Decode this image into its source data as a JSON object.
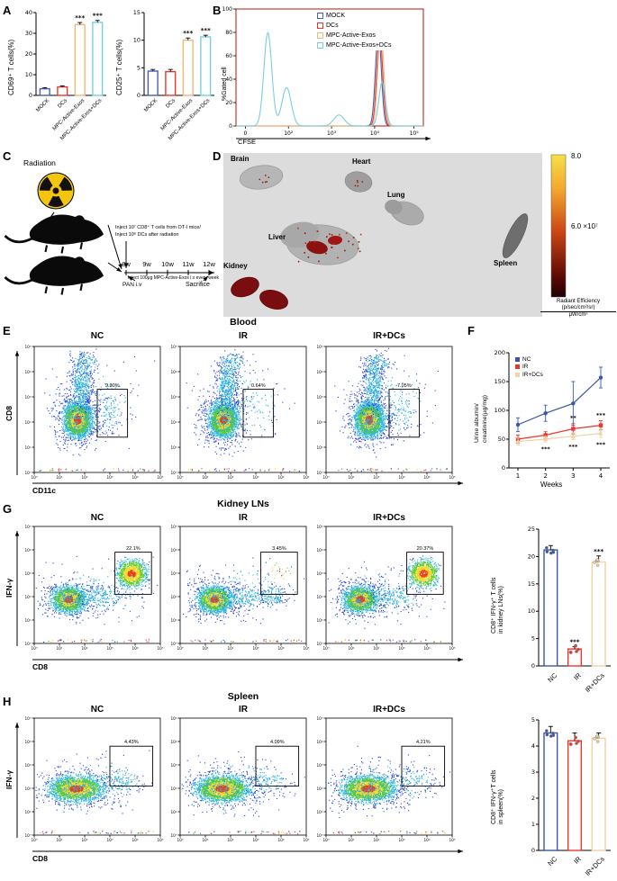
{
  "panels": {
    "a": {
      "label": "A"
    },
    "b": {
      "label": "B",
      "legend": [
        {
          "label": "MOCK",
          "color": "#4a5fb0"
        },
        {
          "label": "DCs",
          "color": "#e8382e"
        },
        {
          "label": "MPC-Active-Exos",
          "color": "#edb87c"
        },
        {
          "label": "MPC-Active-Exos+DCs",
          "color": "#79cfdc"
        }
      ]
    },
    "c": {
      "label": "C",
      "radiation": "Radiation",
      "timeline": [
        "8w",
        "9w",
        "10w",
        "11w",
        "12w"
      ],
      "line1": "Inject 10⁷ CD8⁺ T cells from OT-I mice/",
      "line2": "Inject 10⁶ DCs after radiation",
      "pan": "PAN i.v",
      "exos": "Inject 100μg MPC-Active-Exos i.v every week",
      "sacrifice": "Sacrifice"
    },
    "d": {
      "label": "D",
      "organs": [
        "Brain",
        "Heart",
        "Lung",
        "Liver",
        "Kidney",
        "Spleen"
      ],
      "scale": {
        "top": "8.0",
        "mid": "6.0 ×10⁷",
        "unit1": "Radiant Efficiency",
        "unit2": "(p/sec/cm²/sr)",
        "unit3": "μW/cm²"
      }
    },
    "e": {
      "label": "E",
      "title": "Blood",
      "groups": [
        "NC",
        "IR",
        "IR+DCs"
      ],
      "xlabel": "CD11c",
      "ylabel": "CD8",
      "gates": [
        "9.30%",
        "0.64%",
        "7.05%"
      ]
    },
    "f": {
      "label": "F"
    },
    "g": {
      "label": "G",
      "title": "Kidney LNs",
      "groups": [
        "NC",
        "IR",
        "IR+DCs"
      ],
      "xlabel": "CD8",
      "ylabel": "IFN-γ",
      "gates": [
        "22.1%",
        "3.45%",
        "20.37%"
      ]
    },
    "h": {
      "label": "H",
      "title": "Spleen",
      "groups": [
        "NC",
        "IR",
        "IR+DCs"
      ],
      "xlabel": "CD8",
      "ylabel": "IFN-γ",
      "gates": [
        "4.43%",
        "4.09%",
        "4.21%"
      ]
    }
  },
  "log_ticks": [
    "10⁰",
    "10¹",
    "10²",
    "10³",
    "10⁴",
    "10⁵"
  ],
  "chart_data": [
    {
      "id": "cd69",
      "type": "bar",
      "ylabel": "CD69⁺ T cells(%)",
      "ylim": [
        0,
        40
      ],
      "yticks": [
        0,
        10,
        20,
        30,
        40
      ],
      "categories": [
        "MOCK",
        "DCs",
        "MPC-Active-Exos",
        "MPC-Active-Exos+DCs"
      ],
      "values": [
        3.2,
        4.1,
        34.2,
        35.3
      ],
      "errors": [
        0.5,
        0.5,
        1.0,
        0.9
      ],
      "sig": [
        "",
        "",
        "***",
        "***"
      ],
      "colors": [
        "#4a5fb0",
        "#e8382e",
        "#edb87c",
        "#79cfdc"
      ]
    },
    {
      "id": "cd25",
      "type": "bar",
      "ylabel": "CD25⁺ T cells(%)",
      "ylim": [
        0,
        15
      ],
      "yticks": [
        0,
        5,
        10,
        15
      ],
      "categories": [
        "MOCK",
        "DCs",
        "MPC-Active-Exos",
        "MPC-Active-Exos+DCs"
      ],
      "values": [
        4.4,
        4.3,
        10.0,
        10.6
      ],
      "errors": [
        0.3,
        0.4,
        0.4,
        0.3
      ],
      "sig": [
        "",
        "",
        "***",
        "***"
      ],
      "colors": [
        "#4a5fb0",
        "#e8382e",
        "#edb87c",
        "#79cfdc"
      ]
    },
    {
      "id": "cfse",
      "type": "histogram",
      "xlabel": "CFSE",
      "ylabel": "%Gated cell",
      "ylim": [
        0,
        100
      ],
      "yticks": [
        0,
        20,
        40,
        60,
        80,
        100
      ],
      "xticks": [
        "0",
        "10²",
        "10³",
        "10⁴",
        "10⁵"
      ],
      "series": [
        {
          "name": "MOCK",
          "color": "#4a5fb0",
          "peaks": [
            [
              0.76,
              86,
              0.022
            ]
          ]
        },
        {
          "name": "DCs",
          "color": "#e8382e",
          "peaks": [
            [
              0.767,
              84,
              0.022
            ]
          ]
        },
        {
          "name": "MPC-Active-Exos",
          "color": "#edb87c",
          "peaks": [
            [
              0.773,
              90,
              0.022
            ]
          ]
        },
        {
          "name": "MPC-Active-Exos+DCs",
          "color": "#79cfdc",
          "peaks": [
            [
              0.17,
              85,
              0.03
            ],
            [
              0.27,
              35,
              0.035
            ],
            [
              0.55,
              10,
              0.04
            ],
            [
              0.78,
              40,
              0.025
            ]
          ]
        }
      ]
    },
    {
      "id": "urine",
      "type": "line",
      "xlabel": "Weeks",
      "ylabel_lines": [
        "Urine albumin/",
        "creatinine(μg/mg)"
      ],
      "x": [
        1,
        2,
        3,
        4
      ],
      "ylim": [
        0,
        200
      ],
      "yticks": [
        0,
        50,
        100,
        150,
        200
      ],
      "series": [
        {
          "name": "NC",
          "color": "#3a57a7",
          "marker": "circle",
          "values": [
            75,
            95,
            112,
            157
          ],
          "errors": [
            12,
            14,
            38,
            18
          ]
        },
        {
          "name": "IR",
          "color": "#e8382e",
          "marker": "square",
          "values": [
            50,
            57,
            68,
            74
          ],
          "errors": [
            7,
            6,
            9,
            8
          ]
        },
        {
          "name": "IR+DCs",
          "color": "#efd3a3",
          "marker": "triangle",
          "values": [
            46,
            50,
            55,
            60
          ],
          "errors": [
            6,
            5,
            6,
            7
          ]
        }
      ],
      "annotations": [
        {
          "x": 2,
          "text": "***",
          "pos": "below"
        },
        {
          "x": 3,
          "text": "**",
          "pos": "above"
        },
        {
          "x": 3,
          "text": "***",
          "pos": "below"
        },
        {
          "x": 4,
          "text": "***",
          "pos": "above"
        },
        {
          "x": 4,
          "text": "***",
          "pos": "below"
        }
      ]
    },
    {
      "id": "kidney_bar",
      "type": "bar",
      "ylabel_lines": [
        "CD8⁺ IFN-γ⁺ T cells",
        "in kidney LNs(%)"
      ],
      "ylim": [
        0,
        25
      ],
      "yticks": [
        0,
        5,
        10,
        15,
        20,
        25
      ],
      "categories": [
        "NC",
        "IR",
        "IR+DCs"
      ],
      "values": [
        21.2,
        3.1,
        19.0
      ],
      "errors": [
        0.8,
        0.4,
        1.1
      ],
      "sig": [
        "",
        "***",
        "***"
      ],
      "points": true,
      "colors": [
        "#3a57a7",
        "#e8382e",
        "#efd3a3"
      ]
    },
    {
      "id": "spleen_bar",
      "type": "bar",
      "ylabel_lines": [
        "CD8⁺ IFN-γ⁺T cells",
        "in spleen(%)"
      ],
      "ylim": [
        0,
        5
      ],
      "yticks": [
        0,
        1,
        2,
        3,
        4,
        5
      ],
      "categories": [
        "NC",
        "IR",
        "IR+DCs"
      ],
      "values": [
        4.5,
        4.2,
        4.3
      ],
      "errors": [
        0.25,
        0.3,
        0.2
      ],
      "sig": [
        "",
        "",
        ""
      ],
      "points": true,
      "colors": [
        "#3a57a7",
        "#e8382e",
        "#efd3a3"
      ]
    }
  ]
}
